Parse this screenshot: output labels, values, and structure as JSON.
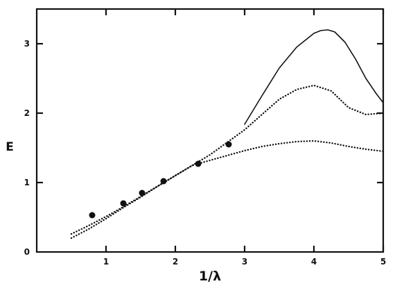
{
  "chart_data": {
    "type": "line",
    "title": "",
    "xlabel": "1/λ",
    "ylabel": "E",
    "xlim": [
      0,
      5
    ],
    "ylim": [
      0,
      3.5
    ],
    "x_ticks": [
      1,
      2,
      3,
      4,
      5
    ],
    "y_ticks": [
      0,
      1,
      2,
      3
    ],
    "grid": false,
    "legend": "none",
    "series": [
      {
        "style": "solid",
        "color": "#111111",
        "x": [
          3.0,
          3.25,
          3.5,
          3.75,
          4.0,
          4.1,
          4.2,
          4.3,
          4.45,
          4.6,
          4.75,
          4.9,
          5.0
        ],
        "y": [
          1.84,
          2.25,
          2.65,
          2.95,
          3.15,
          3.19,
          3.2,
          3.17,
          3.02,
          2.78,
          2.5,
          2.28,
          2.15
        ]
      },
      {
        "style": "dotted",
        "color": "#111111",
        "x": [
          0.5,
          0.75,
          1.0,
          1.25,
          1.5,
          1.75,
          2.0,
          2.25,
          2.5,
          2.75,
          3.0,
          3.25,
          3.5,
          3.75,
          4.0,
          4.25,
          4.5,
          4.75,
          5.0
        ],
        "y": [
          0.26,
          0.38,
          0.51,
          0.65,
          0.8,
          0.95,
          1.1,
          1.25,
          1.4,
          1.58,
          1.76,
          1.98,
          2.2,
          2.34,
          2.4,
          2.32,
          2.08,
          1.98,
          2.0
        ]
      },
      {
        "style": "dotted",
        "color": "#111111",
        "x": [
          0.5,
          0.75,
          1.0,
          1.25,
          1.5,
          1.75,
          2.0,
          2.25,
          2.5,
          2.75,
          3.0,
          3.25,
          3.5,
          3.75,
          4.0,
          4.25,
          4.5,
          4.75,
          5.0
        ],
        "y": [
          0.2,
          0.33,
          0.48,
          0.64,
          0.79,
          0.95,
          1.1,
          1.25,
          1.32,
          1.39,
          1.46,
          1.52,
          1.56,
          1.59,
          1.6,
          1.57,
          1.52,
          1.48,
          1.45
        ]
      },
      {
        "style": "markers",
        "color": "#111111",
        "x": [
          0.8,
          1.25,
          1.52,
          1.83,
          2.33,
          2.77
        ],
        "y": [
          0.53,
          0.7,
          0.85,
          1.02,
          1.27,
          1.55
        ]
      }
    ]
  }
}
